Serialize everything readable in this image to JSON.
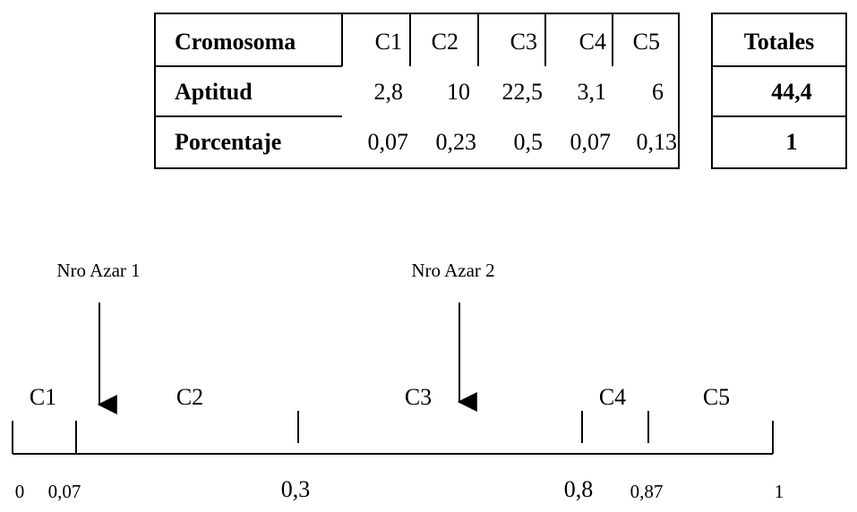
{
  "table": {
    "row_headers": [
      "Cromosoma",
      "Aptitud",
      "Porcentaje"
    ],
    "columns": [
      "C1",
      "C2",
      "C3",
      "C4",
      "C5"
    ],
    "aptitud": [
      "2,8",
      "10",
      "22,5",
      "3,1",
      "6"
    ],
    "porcentaje": [
      "0,07",
      "0,23",
      "0,5",
      "0,07",
      "0,13"
    ]
  },
  "totals": {
    "header": "Totales",
    "aptitud": "44,4",
    "porcentaje": "1"
  },
  "roulette": {
    "segments": [
      "C1",
      "C2",
      "C3",
      "C4",
      "C5"
    ],
    "tick_labels": [
      "0",
      "0,07",
      "0,3",
      "0,8",
      "0,87",
      "1"
    ],
    "arrows": [
      {
        "label": "Nro Azar 1"
      },
      {
        "label": "Nro Azar 2"
      }
    ]
  }
}
